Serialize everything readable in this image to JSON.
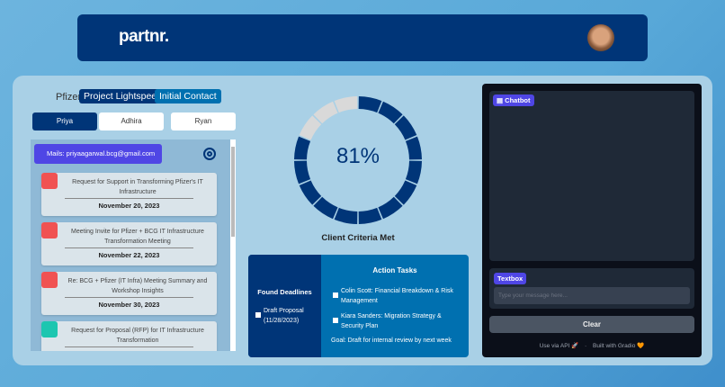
{
  "header": {
    "logo": "partnr.",
    "avatar": "user-avatar"
  },
  "client": {
    "label": "Pfizer:",
    "project": "Project Lightspeed",
    "stage": "Initial Contact"
  },
  "tabs": [
    {
      "label": "Priya",
      "active": true
    },
    {
      "label": "Adhira",
      "active": false
    },
    {
      "label": "Ryan",
      "active": false
    }
  ],
  "mails": {
    "label": "Mails: priyaagarwal.bcg@gmail.com",
    "items": [
      {
        "title": "Request for Support in Transforming Pfizer's IT Infrastructure",
        "date": "November 20, 2023",
        "color": "#f05252"
      },
      {
        "title": "Meeting Invite for Pfizer + BCG IT Infrastructure Transformation Meeting",
        "date": "November 22, 2023",
        "color": "#f05252"
      },
      {
        "title": "Re: BCG + Pfizer (IT Infra) Meeting Summary and Workshop Insights",
        "date": "November 30, 2023",
        "color": "#f05252"
      },
      {
        "title": "Request for Proposal (RFP) for IT Infrastructure Transformation",
        "date": "",
        "color": "#1cc6b0"
      }
    ]
  },
  "chart_data": {
    "type": "pie",
    "title": "",
    "value_label": "81%",
    "caption": "Client Criteria Met",
    "percent": 81,
    "segments_total": 16,
    "segments_filled": 13,
    "colors": {
      "filled": "#003578",
      "empty": "#d9d9d9"
    }
  },
  "deadlines": {
    "title": "Found Deadlines",
    "items": [
      {
        "label": "Draft Proposal (11/28/2023)",
        "checked": false
      }
    ]
  },
  "tasks": {
    "title": "Action Tasks",
    "items": [
      {
        "label": "Colin Scott: Financial Breakdown & Risk Management",
        "checked": false
      },
      {
        "label": "Kiara Sanders: Migration Strategy & Security Plan",
        "checked": false
      }
    ],
    "goal": "Goal: Draft for internal review by next week"
  },
  "chat": {
    "chatbot_label": "Chatbot",
    "textbox_label": "Textbox",
    "placeholder": "Type your message here...",
    "clear": "Clear",
    "api": "Use via API 🚀",
    "sep": "·",
    "built": "Built with Gradio 🧡"
  }
}
